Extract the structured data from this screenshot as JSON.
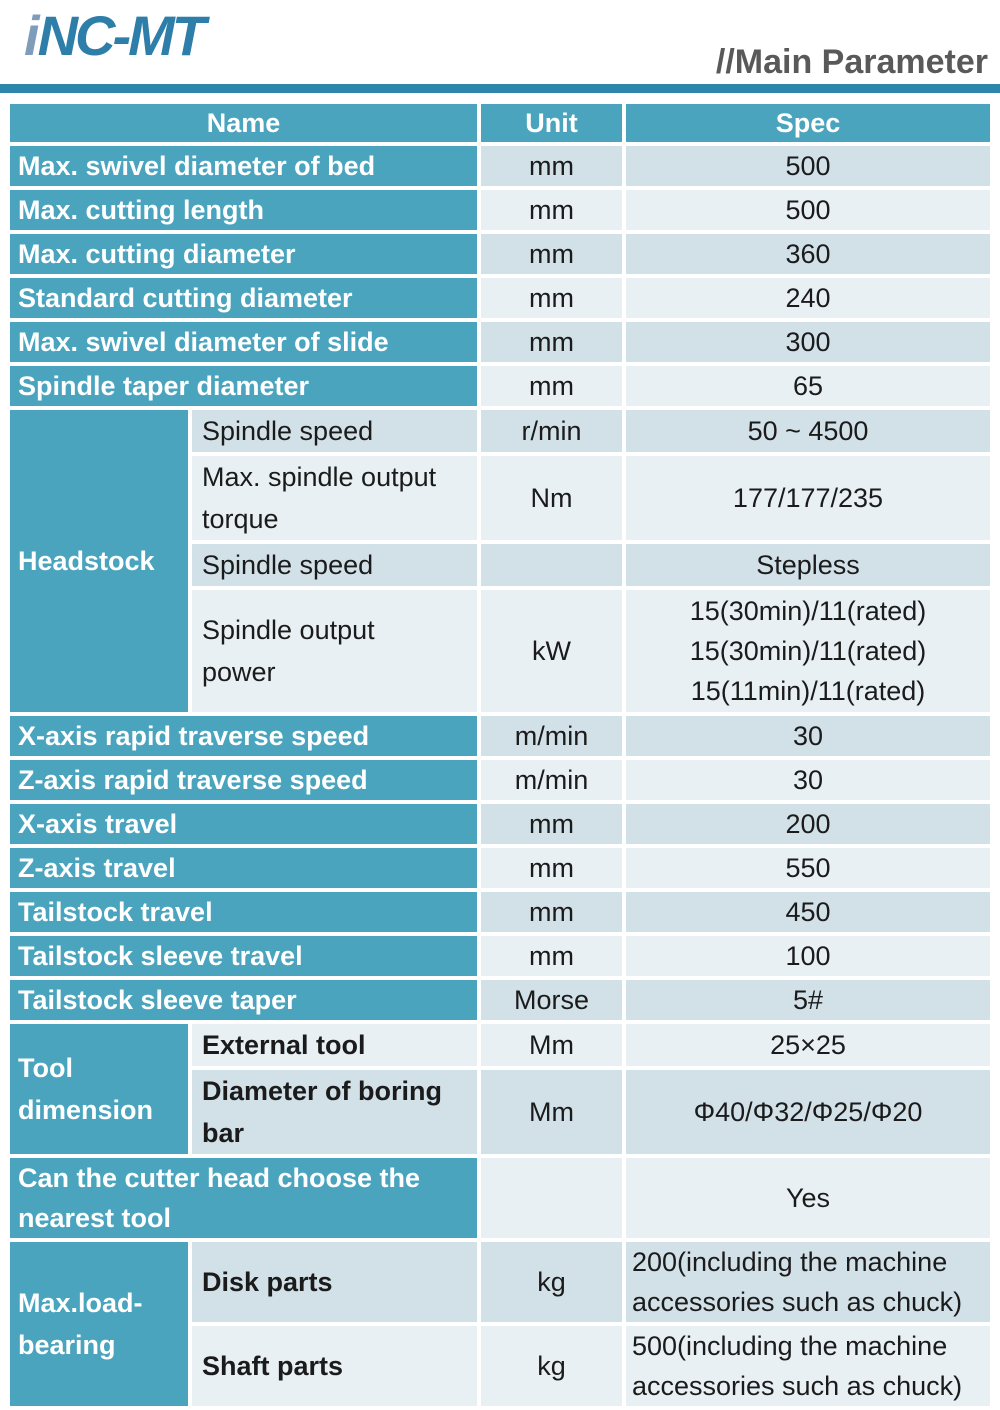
{
  "page": {
    "logo": {
      "prefix": "i",
      "text": "NC-MT"
    },
    "title": "//Main Parameter"
  },
  "colors": {
    "table_teal": "#4aa4be",
    "row_dark": "#d2e0e8",
    "row_light": "#e8f0f4",
    "rule_blue": "#2e86ac",
    "title_gray": "#595959",
    "logo_blue": "#2d7ea8",
    "logo_i_blue": "#7f9dbb"
  },
  "table": {
    "columns": {
      "name": "Name",
      "unit": "Unit",
      "spec": "Spec"
    },
    "rows": [
      {
        "name": [
          "Max. swivel diameter of bed"
        ],
        "unit": "mm",
        "spec": [
          "500"
        ]
      },
      {
        "name": [
          "Max. cutting length"
        ],
        "unit": "mm",
        "spec": [
          "500"
        ]
      },
      {
        "name": [
          "Max. cutting diameter"
        ],
        "unit": "mm",
        "spec": [
          "360"
        ]
      },
      {
        "name": [
          "Standard cutting diameter"
        ],
        "unit": "mm",
        "spec": [
          "240"
        ]
      },
      {
        "name": [
          "Max. swivel diameter of slide"
        ],
        "unit": "mm",
        "spec": [
          "300"
        ]
      },
      {
        "name": [
          "Spindle taper diameter"
        ],
        "unit": "mm",
        "spec": [
          "65"
        ]
      },
      {
        "group": [
          "Headstock"
        ],
        "groupSpan": 4,
        "sub": [
          "Spindle speed"
        ],
        "unit": "r/min",
        "spec": [
          "50 ~ 4500"
        ]
      },
      {
        "sub": [
          "Max. spindle output",
          "torque"
        ],
        "unit": "Nm",
        "spec": [
          "177/177/235"
        ],
        "h": "h84"
      },
      {
        "sub": [
          "Spindle speed"
        ],
        "unit": "",
        "spec": [
          "Stepless"
        ]
      },
      {
        "sub": [
          "Spindle output",
          "power"
        ],
        "unit": "kW",
        "spec": [
          "15(30min)/11(rated)",
          "15(30min)/11(rated)",
          "15(11min)/11(rated)"
        ],
        "h": "h122"
      },
      {
        "name": [
          "X-axis rapid traverse speed"
        ],
        "unit": "m/min",
        "spec": [
          "30"
        ]
      },
      {
        "name": [
          "Z-axis rapid traverse speed"
        ],
        "unit": "m/min",
        "spec": [
          "30"
        ]
      },
      {
        "name": [
          "X-axis travel"
        ],
        "unit": "mm",
        "spec": [
          "200"
        ]
      },
      {
        "name": [
          "Z-axis travel"
        ],
        "unit": "mm",
        "spec": [
          "550"
        ]
      },
      {
        "name": [
          "Tailstock travel"
        ],
        "unit": "mm",
        "spec": [
          "450"
        ]
      },
      {
        "name": [
          "Tailstock sleeve travel"
        ],
        "unit": "mm",
        "spec": [
          "100"
        ]
      },
      {
        "name": [
          "Tailstock sleeve taper"
        ],
        "unit": "Morse",
        "spec": [
          "5#"
        ]
      },
      {
        "group": [
          "Tool",
          "dimension"
        ],
        "groupSpan": 2,
        "sub": [
          "External tool"
        ],
        "subBold": true,
        "unit": "Mm",
        "spec": [
          "25×25"
        ]
      },
      {
        "sub": [
          "Diameter of boring",
          "bar"
        ],
        "subBold": true,
        "unit": "Mm",
        "spec": [
          "Φ40/Φ32/Φ25/Φ20"
        ],
        "h": "h80"
      },
      {
        "name": [
          "Can the cutter head choose the",
          "nearest tool"
        ],
        "unit": "",
        "spec": [
          "Yes"
        ],
        "h": "h80"
      },
      {
        "group": [
          "Max.load-",
          "bearing"
        ],
        "groupSpan": 2,
        "sub": [
          "Disk parts"
        ],
        "subBold": true,
        "unit": "kg",
        "spec": [
          "200(including the machine",
          "accessories such as chuck)"
        ],
        "specLeft": true,
        "h": "h80"
      },
      {
        "sub": [
          "Shaft parts"
        ],
        "subBold": true,
        "unit": "kg",
        "spec": [
          "500(including the machine",
          "accessories such as chuck)"
        ],
        "specLeft": true,
        "h": "h80"
      }
    ]
  }
}
